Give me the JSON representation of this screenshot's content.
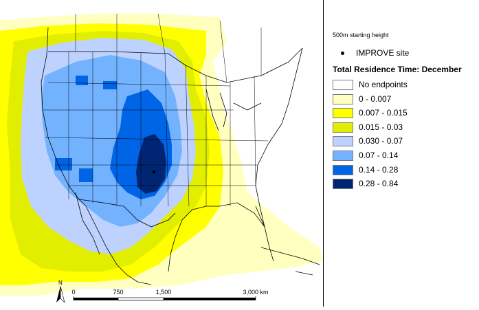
{
  "map": {
    "scale_labels": [
      "0",
      "750",
      "1,500",
      "3,000 km"
    ],
    "north_label": "N",
    "colors": {
      "ocean": "#ffffff",
      "boundary": "#000000"
    }
  },
  "legend": {
    "height_label": "500m starting height",
    "site_label": "IMPROVE site",
    "title": "Total Residence Time: December",
    "items": [
      {
        "label": "No endpoints",
        "color": "#ffffff"
      },
      {
        "label": "0 - 0.007",
        "color": "#ffffc0"
      },
      {
        "label": "0.007 - 0.015",
        "color": "#ffff00"
      },
      {
        "label": "0.015 - 0.03",
        "color": "#e2ee00"
      },
      {
        "label": "0.030 - 0.07",
        "color": "#bed2ff"
      },
      {
        "label": "0.07 - 0.14",
        "color": "#73b2ff"
      },
      {
        "label": "0.14 - 0.28",
        "color": "#0064e6"
      },
      {
        "label": "0.28 - 0.84",
        "color": "#002673"
      }
    ]
  }
}
